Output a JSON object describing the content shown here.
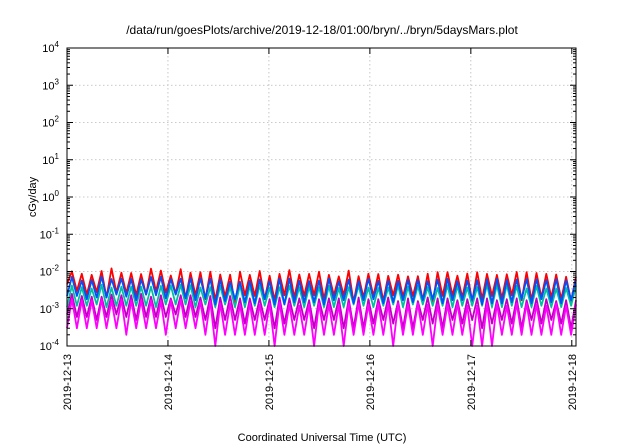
{
  "chart_data": {
    "type": "line",
    "title": "/data/run/goesPlots/archive/2019-12-18/01:00/bryn/../bryn/5daysMars.plot",
    "xlabel": "Coordinated Universal Time (UTC)",
    "ylabel": "cGy/day",
    "yscale": "log",
    "ylim": [
      0.0001,
      10000
    ],
    "y_ticks": [
      {
        "value": 0.0001,
        "base": "10",
        "exp": "-4"
      },
      {
        "value": 0.001,
        "base": "10",
        "exp": "-3"
      },
      {
        "value": 0.01,
        "base": "10",
        "exp": "-2"
      },
      {
        "value": 0.1,
        "base": "10",
        "exp": "-1"
      },
      {
        "value": 1,
        "base": "10",
        "exp": "0"
      },
      {
        "value": 10,
        "base": "10",
        "exp": "1"
      },
      {
        "value": 100,
        "base": "10",
        "exp": "2"
      },
      {
        "value": 1000,
        "base": "10",
        "exp": "3"
      },
      {
        "value": 10000,
        "base": "10",
        "exp": "4"
      }
    ],
    "xlim": [
      "2019-12-13",
      "2019-12-18T01:00"
    ],
    "x_ticks": [
      "2019-12-13",
      "2019-12-14",
      "2019-12-15",
      "2019-12-16",
      "2019-12-17",
      "2019-12-18"
    ],
    "grid": true,
    "legend": "none",
    "series": [
      {
        "color": "#ff0000",
        "values": [
          0.0045,
          0.0101,
          0.003,
          0.0087,
          0.0024,
          0.0081,
          0.0028,
          0.0103,
          0.002,
          0.0121,
          0.0027,
          0.0093,
          0.0026,
          0.0091,
          0.0023,
          0.0085,
          0.0024,
          0.0119,
          0.0029,
          0.0106,
          0.0027,
          0.0078,
          0.0025,
          0.0115,
          0.0019,
          0.0093,
          0.0023,
          0.0096,
          0.0018,
          0.0099,
          0.0017,
          0.0083,
          0.0021,
          0.0082,
          0.0013,
          0.0099,
          0.0023,
          0.0081,
          0.0022,
          0.0103,
          0.0018,
          0.0077,
          0.0017,
          0.0086,
          0.0023,
          0.0109,
          0.002,
          0.0083,
          0.0022,
          0.0086,
          0.0023,
          0.0098,
          0.0018,
          0.0081,
          0.0023,
          0.0074,
          0.0023,
          0.0106,
          0.0015,
          0.0075,
          0.002,
          0.0087,
          0.0022,
          0.0085,
          0.0016,
          0.0076,
          0.0023,
          0.0082,
          0.0021,
          0.0074,
          0.0022,
          0.0075,
          0.0017,
          0.0087,
          0.0014,
          0.0096,
          0.0022,
          0.0096,
          0.0023,
          0.0077,
          0.002,
          0.0088,
          0.0016,
          0.0095,
          0.0018,
          0.0086,
          0.0022,
          0.0081,
          0.0019,
          0.0084,
          0.0023,
          0.0097,
          0.0017,
          0.0096,
          0.0017,
          0.0091,
          0.002,
          0.0086,
          0.002,
          0.0083,
          0.0018,
          0.0072,
          0.0016,
          0.0073
        ]
      },
      {
        "color": "#c000c0",
        "values": [
          0.0007,
          0.0025,
          0.0006,
          0.0022,
          0.0006,
          0.0021,
          0.0005,
          0.0021,
          0.0006,
          0.0024,
          0.0007,
          0.0023,
          0.0006,
          0.0023,
          0.0005,
          0.0025,
          0.0006,
          0.0021,
          0.0006,
          0.0023,
          0.0006,
          0.0019,
          0.0007,
          0.0023,
          0.0006,
          0.0023,
          0.0006,
          0.002,
          0.0005,
          0.0022,
          0.0003,
          0.002,
          0.0005,
          0.0022,
          0.0005,
          0.0019,
          0.0004,
          0.0019,
          0.0005,
          0.0019,
          0.0005,
          0.0018,
          0.0003,
          0.002,
          0.0004,
          0.0019,
          0.0005,
          0.0019,
          0.0005,
          0.0017,
          0.0003,
          0.0018,
          0.0005,
          0.0019,
          0.0005,
          0.0019,
          0.0003,
          0.0018,
          0.0003,
          0.002,
          0.0003,
          0.0018,
          0.0004,
          0.0018,
          0.0005,
          0.002,
          0.0004,
          0.0016,
          0.0003,
          0.0019,
          0.0003,
          0.0016,
          0.0005,
          0.002,
          0.0004,
          0.0019,
          0.0003,
          0.0019,
          0.0005,
          0.0017,
          0.0004,
          0.0018,
          0.0005,
          0.0019,
          0.0003,
          0.0019,
          0.0004,
          0.0017,
          0.0005,
          0.0018,
          0.0004,
          0.0019,
          0.0003,
          0.0017,
          0.0005,
          0.0019,
          0.0004,
          0.0018,
          0.0005,
          0.0016,
          0.0004,
          0.0017,
          0.0003,
          0.0017
        ]
      },
      {
        "color": "#00c0a0",
        "values": [
          0.0011,
          0.0042,
          0.0012,
          0.0038,
          0.0012,
          0.0035,
          0.0013,
          0.0044,
          0.0011,
          0.0037,
          0.0012,
          0.0039,
          0.0012,
          0.0039,
          0.0012,
          0.0039,
          0.0012,
          0.0039,
          0.0011,
          0.0041,
          0.0013,
          0.0042,
          0.0013,
          0.0044,
          0.0013,
          0.0043,
          0.0011,
          0.0037,
          0.0013,
          0.0038,
          0.0011,
          0.0041,
          0.0013,
          0.0039,
          0.0011,
          0.0043,
          0.0011,
          0.0041,
          0.0012,
          0.0043,
          0.0012,
          0.0037,
          0.0011,
          0.0038,
          0.0013,
          0.0041,
          0.0012,
          0.0038,
          0.0011,
          0.0039,
          0.0012,
          0.0038,
          0.0011,
          0.0041,
          0.0011,
          0.0036,
          0.0011,
          0.0038,
          0.0013,
          0.0042,
          0.0012,
          0.0037,
          0.0011,
          0.0036,
          0.0012,
          0.0037,
          0.0013,
          0.0043,
          0.0011,
          0.0039,
          0.0013,
          0.0041,
          0.0013,
          0.0038,
          0.0012,
          0.0036,
          0.0012,
          0.0043,
          0.0011,
          0.0041,
          0.0012,
          0.0037,
          0.0012,
          0.0038,
          0.0012,
          0.0044,
          0.0011,
          0.0044,
          0.0011,
          0.0044,
          0.0012,
          0.0041,
          0.0011,
          0.0035,
          0.0011,
          0.0041,
          0.0012,
          0.0035,
          0.0011,
          0.0035,
          0.0011,
          0.0036,
          0.0012,
          0.0042
        ]
      },
      {
        "color": "#ff00ff",
        "values": [
          0.0003,
          0.0018,
          0.0003,
          0.0017,
          0.0003,
          0.0017,
          0.0003,
          0.0018,
          0.0003,
          0.0017,
          0.0003,
          0.0018,
          0.0002,
          0.0017,
          0.0003,
          0.0017,
          0.0003,
          0.0017,
          0.0003,
          0.0016,
          0.0002,
          0.0017,
          0.0003,
          0.0018,
          0.0003,
          0.0016,
          0.0003,
          0.0016,
          0.0002,
          0.0016,
          0.0001,
          0.0014,
          0.0002,
          0.0014,
          0.0002,
          0.0013,
          0.0002,
          0.0014,
          0.0002,
          0.0013,
          0.0002,
          0.0014,
          0.0001,
          0.0015,
          0.0002,
          0.0013,
          0.0002,
          0.0012,
          0.0002,
          0.0013,
          0.0001,
          0.0014,
          0.0002,
          0.0013,
          0.0002,
          0.0013,
          0.0001,
          0.0014,
          0.0002,
          0.0014,
          0.0002,
          0.0013,
          0.0002,
          0.0014,
          0.0002,
          0.0014,
          0.0001,
          0.0014,
          0.0002,
          0.0013,
          0.0002,
          0.0014,
          0.0002,
          0.0013,
          0.0001,
          0.0013,
          0.0002,
          0.0013,
          0.0002,
          0.0014,
          0.0002,
          0.0012,
          0.0001,
          0.0012,
          0.0001,
          0.0014,
          0.0001,
          0.0014,
          0.0002,
          0.0012,
          0.0002,
          0.0014,
          0.0002,
          0.0014,
          0.0002,
          0.0013,
          0.0002,
          0.0012,
          0.0002,
          0.0014,
          0.0002,
          0.0012,
          0.0002,
          0.0013
        ]
      },
      {
        "color": "#0050ff",
        "values": [
          0.0022,
          0.0072,
          0.0022,
          0.0057,
          0.0018,
          0.0059,
          0.002,
          0.0073,
          0.002,
          0.0063,
          0.0024,
          0.0065,
          0.0021,
          0.0063,
          0.0017,
          0.0061,
          0.0024,
          0.0071,
          0.0023,
          0.0072,
          0.0019,
          0.0062,
          0.0024,
          0.0064,
          0.0019,
          0.0066,
          0.0017,
          0.0066,
          0.0019,
          0.0064,
          0.0013,
          0.0061,
          0.0016,
          0.0053,
          0.0018,
          0.0053,
          0.0015,
          0.0056,
          0.0014,
          0.0061,
          0.0018,
          0.0055,
          0.0013,
          0.0064,
          0.0013,
          0.0065,
          0.0015,
          0.0056,
          0.0015,
          0.0055,
          0.0015,
          0.0057,
          0.0013,
          0.0064,
          0.0017,
          0.0054,
          0.0017,
          0.0061,
          0.0014,
          0.0055,
          0.0017,
          0.0064,
          0.0018,
          0.0056,
          0.0014,
          0.0057,
          0.0015,
          0.0056,
          0.0017,
          0.006,
          0.0015,
          0.0059,
          0.0017,
          0.0055,
          0.0018,
          0.0061,
          0.0014,
          0.0064,
          0.0017,
          0.0055,
          0.0017,
          0.0057,
          0.0017,
          0.0058,
          0.0013,
          0.0061,
          0.0014,
          0.0063,
          0.0014,
          0.0059,
          0.0015,
          0.0061,
          0.0018,
          0.0063,
          0.0014,
          0.0062,
          0.0018,
          0.0059,
          0.0015,
          0.0063,
          0.0014,
          0.0058,
          0.0017,
          0.0061
        ]
      }
    ]
  }
}
